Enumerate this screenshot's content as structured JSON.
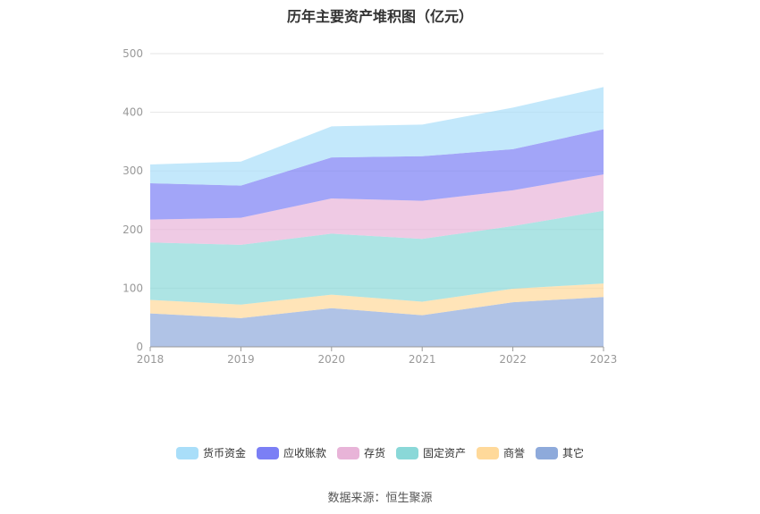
{
  "chart_data": {
    "type": "area",
    "stacked": true,
    "title": "历年主要资产堆积图（亿元）",
    "x": [
      "2018",
      "2019",
      "2020",
      "2021",
      "2022",
      "2023"
    ],
    "yticks": [
      "0",
      "100",
      "200",
      "300",
      "400",
      "500"
    ],
    "ylim": [
      0,
      500
    ],
    "grid": true,
    "legend_position": "bottom",
    "series": [
      {
        "name": "其它",
        "color": "#8eaadb",
        "values": [
          57,
          49,
          66,
          54,
          76,
          85
        ]
      },
      {
        "name": "商誉",
        "color": "#ffd99a",
        "values": [
          23,
          23,
          23,
          23,
          23,
          23
        ]
      },
      {
        "name": "固定资产",
        "color": "#8ad8d8",
        "values": [
          98,
          102,
          104,
          107,
          107,
          124
        ]
      },
      {
        "name": "存货",
        "color": "#e8b4d8",
        "values": [
          39,
          46,
          60,
          65,
          61,
          62
        ]
      },
      {
        "name": "应收账款",
        "color": "#7b7ff5",
        "values": [
          62,
          55,
          70,
          76,
          70,
          77
        ]
      },
      {
        "name": "货币资金",
        "color": "#a9def9",
        "values": [
          32,
          41,
          53,
          54,
          71,
          72
        ]
      }
    ],
    "legend_order": [
      "货币资金",
      "应收账款",
      "存货",
      "固定资产",
      "商誉",
      "其它"
    ],
    "source": "数据来源：恒生聚源"
  }
}
